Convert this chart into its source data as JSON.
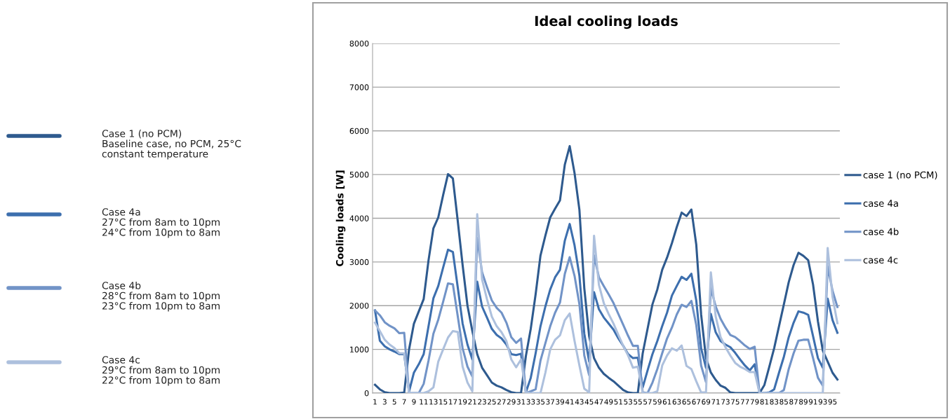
{
  "chart_data": {
    "type": "line",
    "title": "Ideal cooling loads",
    "ylabel": "Cooling loads [W]",
    "categories": [
      "1",
      null,
      "3",
      null,
      "5",
      null,
      "7",
      null,
      "9",
      null,
      "11",
      null,
      "13",
      null,
      "15",
      null,
      "17",
      null,
      "19",
      null,
      "21",
      null,
      "23",
      null,
      "25",
      null,
      "27",
      null,
      "29",
      null,
      "31",
      null,
      "33",
      null,
      "35",
      null,
      "37",
      null,
      "39",
      null,
      "41",
      null,
      "43",
      null,
      "45",
      null,
      "47",
      null,
      "49",
      null,
      "51",
      null,
      "53",
      null,
      "55",
      null,
      "57",
      null,
      "59",
      null,
      "61",
      null,
      "63",
      null,
      "65",
      null,
      "67",
      null,
      "69",
      null,
      "71",
      null,
      "73",
      null,
      "75",
      null,
      "77",
      null,
      "79",
      null,
      "81",
      null,
      "83",
      null,
      "85",
      null,
      "87",
      null,
      "89",
      null,
      "91",
      null,
      "93",
      null,
      "95",
      null
    ],
    "series": [
      {
        "name": "case 1 (no PCM)",
        "color": "#2e5a8e",
        "values": [
          190,
          85,
          20,
          0,
          0,
          0,
          10,
          1000,
          1590,
          1870,
          2150,
          3040,
          3770,
          4020,
          4530,
          5010,
          4910,
          3940,
          2930,
          2000,
          1420,
          890,
          580,
          410,
          240,
          170,
          130,
          70,
          20,
          0,
          0,
          850,
          1470,
          2260,
          3150,
          3600,
          4020,
          4220,
          4410,
          5230,
          5650,
          5030,
          4190,
          2400,
          1300,
          800,
          580,
          440,
          350,
          270,
          170,
          70,
          15,
          0,
          0,
          910,
          1470,
          2030,
          2370,
          2820,
          3100,
          3430,
          3800,
          4130,
          4050,
          4200,
          3400,
          1800,
          800,
          470,
          300,
          170,
          120,
          15,
          0,
          0,
          0,
          0,
          0,
          0,
          185,
          600,
          1025,
          1530,
          2030,
          2540,
          2930,
          3210,
          3140,
          3040,
          2480,
          1640,
          970,
          720,
          465,
          310
        ]
      },
      {
        "name": "case 4a",
        "color": "#3d6fae",
        "values": [
          1890,
          1200,
          1070,
          1000,
          950,
          890,
          890,
          40,
          470,
          660,
          890,
          1530,
          2170,
          2450,
          2870,
          3280,
          3230,
          2420,
          1590,
          1110,
          770,
          2550,
          1980,
          1730,
          1470,
          1330,
          1250,
          1110,
          890,
          870,
          900,
          20,
          350,
          910,
          1530,
          1980,
          2370,
          2650,
          2820,
          3490,
          3870,
          3380,
          2680,
          1360,
          720,
          2310,
          1920,
          1730,
          1590,
          1450,
          1250,
          1080,
          890,
          800,
          810,
          130,
          520,
          890,
          1190,
          1530,
          1840,
          2230,
          2450,
          2660,
          2590,
          2730,
          2120,
          1025,
          580,
          1810,
          1390,
          1190,
          1110,
          1050,
          920,
          770,
          630,
          520,
          660,
          0,
          0,
          15,
          85,
          465,
          830,
          1280,
          1610,
          1870,
          1840,
          1790,
          1300,
          800,
          580,
          2160,
          1670,
          1380
        ]
      },
      {
        "name": "case 4b",
        "color": "#7193c7",
        "values": [
          1890,
          1780,
          1620,
          1540,
          1480,
          1370,
          1380,
          0,
          0,
          0,
          210,
          745,
          1360,
          1680,
          2090,
          2510,
          2490,
          1760,
          1025,
          605,
          380,
          3550,
          2760,
          2430,
          2120,
          1950,
          1840,
          1610,
          1280,
          1150,
          1250,
          0,
          40,
          85,
          745,
          1140,
          1530,
          1840,
          2070,
          2730,
          3110,
          2680,
          2030,
          860,
          410,
          3150,
          2650,
          2450,
          2260,
          2060,
          1810,
          1560,
          1310,
          1080,
          1080,
          15,
          0,
          240,
          550,
          910,
          1250,
          1500,
          1800,
          2020,
          1970,
          2110,
          1560,
          630,
          250,
          2400,
          1980,
          1700,
          1500,
          1330,
          1280,
          1190,
          1090,
          1010,
          1060,
          0,
          0,
          0,
          0,
          0,
          70,
          550,
          910,
          1200,
          1220,
          1220,
          800,
          350,
          170,
          2900,
          2340,
          1970
        ]
      },
      {
        "name": "case 4c",
        "color": "#adc0dd",
        "values": [
          1610,
          1420,
          1220,
          1110,
          1030,
          910,
          910,
          0,
          0,
          0,
          0,
          40,
          130,
          720,
          1000,
          1270,
          1420,
          1400,
          605,
          240,
          40,
          4090,
          2600,
          2150,
          1750,
          1530,
          1390,
          1190,
          770,
          590,
          770,
          15,
          0,
          0,
          0,
          465,
          1000,
          1220,
          1320,
          1670,
          1820,
          1190,
          630,
          100,
          15,
          3600,
          2480,
          2060,
          1810,
          1590,
          1330,
          1080,
          860,
          580,
          605,
          0,
          0,
          0,
          40,
          630,
          860,
          1025,
          970,
          1090,
          620,
          550,
          270,
          15,
          15,
          2760,
          1750,
          1280,
          1050,
          860,
          690,
          605,
          550,
          480,
          480,
          0,
          0,
          0,
          0,
          0,
          0,
          0,
          0,
          0,
          0,
          0,
          0,
          0,
          0,
          3320,
          2200,
          1600
        ]
      }
    ],
    "ylim": [
      0,
      8000
    ],
    "yticks": [
      0,
      1000,
      2000,
      3000,
      4000,
      5000,
      6000,
      7000,
      8000
    ],
    "grid": "y",
    "legend": "right",
    "marker": "none",
    "line_style": "solid",
    "annotations": [
      "Case 1 (no PCM)\nBaseline case, no PCM, 25°C\nconstant temperature",
      "Case 4a\n27°C from 8am to 10pm\n24°C from 10pm to 8am",
      "Case 4b\n28°C from 8am to 10pm\n23°C from 10pm to 8am",
      "Case 4c\n29°C from 8am to 10pm\n22°C from 10pm to 8am"
    ]
  }
}
